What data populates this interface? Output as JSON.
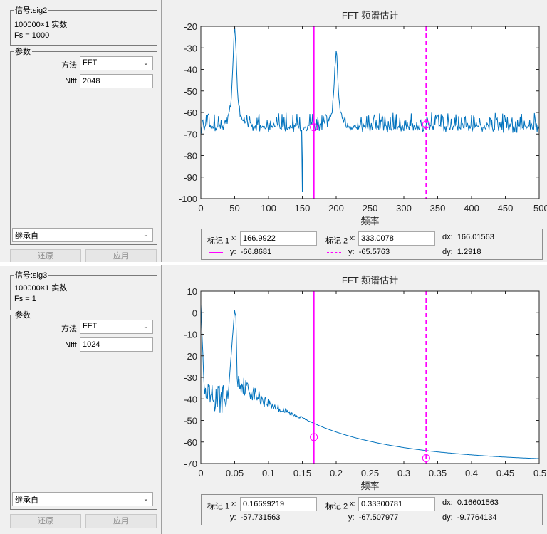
{
  "panels": [
    {
      "signal_legend": "信号:sig2",
      "signal_size": "100000×1 实数",
      "signal_fs": "Fs = 1000",
      "params_legend": "参数",
      "method_label": "方法",
      "method_value": "FFT",
      "nfft_label": "Nfft",
      "nfft_value": "2048",
      "inherit_value": "继承自",
      "restore_label": "还原",
      "apply_label": "应用",
      "marker": {
        "m1_label": "标记 1",
        "x_label": "x:",
        "m1_x": "166.9922",
        "m2_label": "标记 2",
        "m2_x": "333.0078",
        "dx_label": "dx:",
        "dx_value": "166.01563",
        "y_label": "y:",
        "m1_y": "-66.8681",
        "m2_y": "-65.5763",
        "dy_label": "dy:",
        "dy_value": "1.2918"
      },
      "chart_data": {
        "type": "line",
        "title": "FFT 频谱估计",
        "xlabel": "频率",
        "ylabel": "",
        "xlim": [
          0,
          500
        ],
        "ylim": [
          -100,
          -20
        ],
        "xticks": [
          "0",
          "50",
          "100",
          "150",
          "200",
          "250",
          "300",
          "350",
          "400",
          "450",
          "500"
        ],
        "yticks": [
          "-20",
          "-30",
          "-40",
          "-50",
          "-60",
          "-70",
          "-80",
          "-90",
          "-100"
        ],
        "series_color": "#0072bd",
        "peaks": [
          {
            "x": 50,
            "y": -20
          },
          {
            "x": 200,
            "y": -32
          }
        ],
        "noise_floor": -68,
        "markers": [
          {
            "x": 166.9922,
            "y": -66.8681,
            "style": "solid"
          },
          {
            "x": 333.0078,
            "y": -65.5763,
            "style": "dashed"
          }
        ],
        "marker_color": "#ff00ff"
      }
    },
    {
      "signal_legend": "信号:sig3",
      "signal_size": "100000×1 实数",
      "signal_fs": "Fs = 1",
      "params_legend": "参数",
      "method_label": "方法",
      "method_value": "FFT",
      "nfft_label": "Nfft",
      "nfft_value": "1024",
      "inherit_value": "继承自",
      "restore_label": "还原",
      "apply_label": "应用",
      "marker": {
        "m1_label": "标记 1",
        "x_label": "x:",
        "m1_x": "0.16699219",
        "m2_label": "标记 2",
        "m2_x": "0.33300781",
        "dx_label": "dx:",
        "dx_value": "0.16601563",
        "y_label": "y:",
        "m1_y": "-57.731563",
        "m2_y": "-67.507977",
        "dy_label": "dy:",
        "dy_value": "-9.7764134"
      },
      "chart_data": {
        "type": "line",
        "title": "FFT 频谱估计",
        "xlabel": "频率",
        "ylabel": "",
        "xlim": [
          0,
          0.5
        ],
        "ylim": [
          -70,
          10
        ],
        "xticks": [
          "0",
          "0.05",
          "0.1",
          "0.15",
          "0.2",
          "0.25",
          "0.3",
          "0.35",
          "0.4",
          "0.45",
          "0.5"
        ],
        "yticks": [
          "10",
          "0",
          "-10",
          "-20",
          "-30",
          "-40",
          "-50",
          "-60",
          "-70"
        ],
        "series_color": "#0072bd",
        "peaks": [
          {
            "x": 0.05,
            "y": 5
          }
        ],
        "markers": [
          {
            "x": 0.16699219,
            "y": -57.731563,
            "style": "solid"
          },
          {
            "x": 0.33300781,
            "y": -67.507977,
            "style": "dashed"
          }
        ],
        "marker_color": "#ff00ff"
      }
    }
  ]
}
